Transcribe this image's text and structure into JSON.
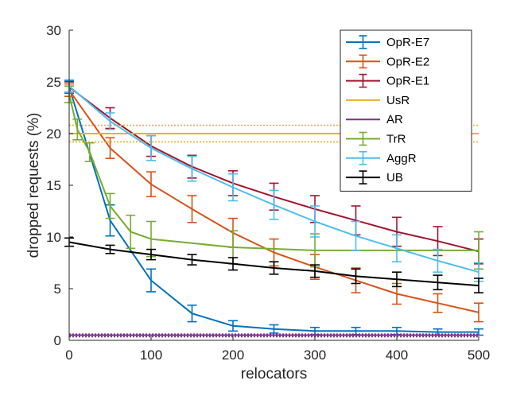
{
  "chart_data": {
    "type": "line",
    "xlabel": "relocators",
    "ylabel": "dropped requests (%)",
    "xlim": [
      0,
      500
    ],
    "ylim": [
      0,
      30
    ],
    "xticks": [
      0,
      100,
      200,
      300,
      400,
      500
    ],
    "yticks": [
      0,
      5,
      10,
      15,
      20,
      25,
      30
    ],
    "grid": false,
    "legend_position": "top-right",
    "series": [
      {
        "name": "OpR-E7",
        "color": "#0072BD",
        "style": "solid",
        "x": [
          0,
          50,
          100,
          150,
          200,
          250,
          300,
          350,
          400,
          450,
          500
        ],
        "y": [
          24.5,
          11.6,
          5.8,
          2.6,
          1.4,
          1.1,
          0.9,
          0.9,
          0.9,
          0.8,
          0.8
        ],
        "err": [
          0.6,
          1.5,
          1.1,
          0.8,
          0.5,
          0.4,
          0.35,
          0.35,
          0.35,
          0.3,
          0.3
        ]
      },
      {
        "name": "OpR-E2",
        "color": "#D95319",
        "style": "solid",
        "x": [
          0,
          50,
          100,
          150,
          200,
          250,
          300,
          350,
          400,
          450,
          500
        ],
        "y": [
          24.2,
          18.6,
          15.1,
          12.7,
          10.4,
          8.5,
          7.1,
          5.8,
          4.5,
          3.6,
          2.7
        ],
        "err": [
          0.6,
          1.0,
          1.2,
          1.3,
          1.4,
          1.3,
          1.2,
          1.2,
          1.0,
          0.9,
          0.9
        ]
      },
      {
        "name": "OpR-E1",
        "color": "#A2142F",
        "style": "solid",
        "x": [
          0,
          50,
          100,
          150,
          200,
          250,
          300,
          350,
          400,
          450,
          500
        ],
        "y": [
          24.5,
          21.5,
          18.8,
          16.8,
          15.2,
          13.9,
          12.7,
          11.6,
          10.5,
          9.6,
          8.6
        ],
        "err": [
          0.5,
          1.0,
          1.0,
          1.1,
          1.2,
          1.3,
          1.3,
          1.4,
          1.4,
          1.4,
          1.2
        ]
      },
      {
        "name": "UsR",
        "color": "#EDB120",
        "style": "flat",
        "value": 20.0,
        "band": [
          19.2,
          20.8
        ]
      },
      {
        "name": "AR",
        "color": "#7E2F8E",
        "style": "flat",
        "value": 0.5,
        "band": [
          0.35,
          0.6
        ]
      },
      {
        "name": "TrR",
        "color": "#77AC30",
        "style": "solid",
        "x": [
          0,
          10,
          25,
          50,
          75,
          100,
          200,
          300,
          500
        ],
        "y": [
          23.8,
          20.4,
          18.2,
          13.0,
          10.5,
          9.8,
          9.0,
          8.7,
          8.7
        ],
        "err": [
          0.8,
          1.0,
          0.9,
          1.2,
          1.6,
          1.7,
          1.6,
          1.6,
          1.8
        ]
      },
      {
        "name": "AggR",
        "color": "#4DBEEE",
        "style": "solid",
        "x": [
          0,
          50,
          100,
          150,
          200,
          250,
          300,
          350,
          400,
          450,
          500
        ],
        "y": [
          24.6,
          21.2,
          18.6,
          16.6,
          14.8,
          13.1,
          11.5,
          10.1,
          8.9,
          7.7,
          6.6
        ],
        "err": [
          0.6,
          0.8,
          1.2,
          1.2,
          1.3,
          1.4,
          1.5,
          1.4,
          1.3,
          1.1,
          0.9
        ]
      },
      {
        "name": "UB",
        "color": "#000000",
        "style": "solid",
        "x": [
          0,
          50,
          100,
          150,
          200,
          250,
          300,
          350,
          400,
          450,
          500
        ],
        "y": [
          9.5,
          8.8,
          8.3,
          7.8,
          7.4,
          7.0,
          6.7,
          6.2,
          5.9,
          5.6,
          5.3
        ],
        "err": [
          0.4,
          0.4,
          0.5,
          0.5,
          0.6,
          0.6,
          0.6,
          0.7,
          0.7,
          0.7,
          0.7
        ]
      }
    ]
  }
}
